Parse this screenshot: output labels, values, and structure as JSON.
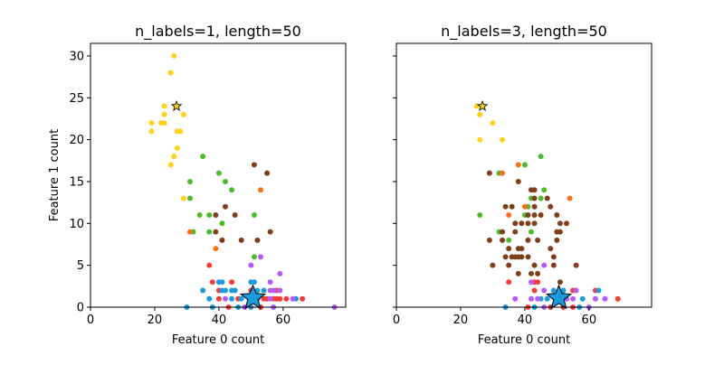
{
  "colors": {
    "yellow": "#ffd11a",
    "green": "#4cbb2e",
    "brown": "#7f3f1a",
    "orange": "#ff6f1a",
    "red": "#f53a3a",
    "blue": "#1a9be0",
    "purple": "#b35cf5"
  },
  "chart_data": [
    {
      "type": "scatter",
      "title": "n_labels=1, length=50",
      "xlabel": "Feature 0 count",
      "ylabel": "Feature 1 count",
      "xlim": [
        0,
        79.5
      ],
      "ylim": [
        0,
        31.5
      ],
      "xticks": [
        0,
        20,
        40,
        60
      ],
      "yticks": [
        0,
        5,
        10,
        15,
        20,
        25,
        30
      ],
      "grid": false,
      "points": [
        [
          26,
          30,
          "yellow"
        ],
        [
          25,
          28,
          "yellow"
        ],
        [
          23,
          24,
          "yellow"
        ],
        [
          23,
          23,
          "yellow"
        ],
        [
          29,
          23,
          "yellow"
        ],
        [
          19,
          22,
          "yellow"
        ],
        [
          22,
          22,
          "yellow"
        ],
        [
          23,
          22,
          "yellow"
        ],
        [
          19,
          21,
          "yellow"
        ],
        [
          27,
          21,
          "yellow"
        ],
        [
          28,
          21,
          "yellow"
        ],
        [
          27,
          19,
          "yellow"
        ],
        [
          26,
          18,
          "yellow"
        ],
        [
          25,
          17,
          "yellow"
        ],
        [
          29,
          13,
          "yellow"
        ],
        [
          35,
          18,
          "green"
        ],
        [
          40,
          16,
          "green"
        ],
        [
          31,
          15,
          "green"
        ],
        [
          42,
          15,
          "green"
        ],
        [
          44,
          14,
          "green"
        ],
        [
          31,
          13,
          "green"
        ],
        [
          34,
          11,
          "green"
        ],
        [
          37,
          11,
          "green"
        ],
        [
          51,
          11,
          "green"
        ],
        [
          41,
          10,
          "green"
        ],
        [
          32,
          9,
          "green"
        ],
        [
          37,
          9,
          "green"
        ],
        [
          51,
          6,
          "green"
        ],
        [
          51,
          17,
          "brown"
        ],
        [
          55,
          16,
          "brown"
        ],
        [
          42,
          12,
          "brown"
        ],
        [
          39,
          11,
          "brown"
        ],
        [
          45,
          11,
          "brown"
        ],
        [
          39,
          9,
          "brown"
        ],
        [
          56,
          9,
          "brown"
        ],
        [
          41,
          8,
          "brown"
        ],
        [
          47,
          8,
          "brown"
        ],
        [
          52,
          8,
          "brown"
        ],
        [
          53,
          14,
          "orange"
        ],
        [
          31,
          9,
          "orange"
        ],
        [
          39,
          7,
          "orange"
        ],
        [
          37,
          5,
          "red"
        ],
        [
          38,
          3,
          "red"
        ],
        [
          44,
          3,
          "red"
        ],
        [
          40,
          2,
          "red"
        ],
        [
          50,
          2,
          "red"
        ],
        [
          58,
          2,
          "red"
        ],
        [
          40,
          1,
          "red"
        ],
        [
          46,
          1,
          "red"
        ],
        [
          54,
          1,
          "red"
        ],
        [
          55,
          1,
          "red"
        ],
        [
          57,
          1,
          "red"
        ],
        [
          58,
          1,
          "red"
        ],
        [
          59,
          1,
          "red"
        ],
        [
          61,
          1,
          "red"
        ],
        [
          66,
          1,
          "red"
        ],
        [
          43,
          0,
          "red"
        ],
        [
          53,
          0,
          "red"
        ],
        [
          40,
          3,
          "blue"
        ],
        [
          41,
          3,
          "blue"
        ],
        [
          50,
          3,
          "blue"
        ],
        [
          51,
          3,
          "blue"
        ],
        [
          35,
          2,
          "blue"
        ],
        [
          41,
          2,
          "blue"
        ],
        [
          42,
          2,
          "blue"
        ],
        [
          44,
          2,
          "blue"
        ],
        [
          45,
          2,
          "blue"
        ],
        [
          52,
          2,
          "blue"
        ],
        [
          54,
          2,
          "blue"
        ],
        [
          37,
          1,
          "blue"
        ],
        [
          44,
          1,
          "blue"
        ],
        [
          47,
          1,
          "blue"
        ],
        [
          52,
          1,
          "blue"
        ],
        [
          64,
          1,
          "blue"
        ],
        [
          30,
          0,
          "blue"
        ],
        [
          38,
          0,
          "blue"
        ],
        [
          46,
          0,
          "blue"
        ],
        [
          50,
          0,
          "blue"
        ],
        [
          53,
          6,
          "purple"
        ],
        [
          50,
          5,
          "purple"
        ],
        [
          59,
          4,
          "purple"
        ],
        [
          56,
          3,
          "purple"
        ],
        [
          56,
          2,
          "purple"
        ],
        [
          57,
          2,
          "purple"
        ],
        [
          59,
          2,
          "purple"
        ],
        [
          42,
          1,
          "purple"
        ],
        [
          56,
          1,
          "purple"
        ],
        [
          63,
          1,
          "purple"
        ],
        [
          48,
          0,
          "purple"
        ],
        [
          57,
          0,
          "purple"
        ],
        [
          76,
          0,
          "purple"
        ]
      ],
      "small_star": [
        26.8,
        24,
        "yellow"
      ],
      "big_star": [
        50.6,
        1.1,
        "blue"
      ]
    },
    {
      "type": "scatter",
      "title": "n_labels=3, length=50",
      "xlabel": "Feature 0 count",
      "ylabel": "",
      "xlim": [
        0,
        79.5
      ],
      "ylim": [
        0,
        31.5
      ],
      "xticks": [
        0,
        20,
        40,
        60
      ],
      "yticks": [
        0,
        5,
        10,
        15,
        20,
        25,
        30
      ],
      "grid": false,
      "points": [
        [
          25,
          24,
          "yellow"
        ],
        [
          26,
          23,
          "yellow"
        ],
        [
          30,
          22,
          "yellow"
        ],
        [
          26,
          20,
          "yellow"
        ],
        [
          33,
          20,
          "yellow"
        ],
        [
          45,
          18,
          "green"
        ],
        [
          40,
          17,
          "green"
        ],
        [
          32,
          16,
          "green"
        ],
        [
          46,
          14,
          "green"
        ],
        [
          42,
          13,
          "green"
        ],
        [
          45,
          13,
          "green"
        ],
        [
          41,
          12,
          "green"
        ],
        [
          26,
          11,
          "green"
        ],
        [
          40,
          11,
          "green"
        ],
        [
          32,
          9,
          "green"
        ],
        [
          42,
          9,
          "green"
        ],
        [
          35,
          8,
          "green"
        ],
        [
          38,
          17,
          "orange"
        ],
        [
          33,
          16,
          "orange"
        ],
        [
          54,
          13,
          "orange"
        ],
        [
          40,
          12,
          "orange"
        ],
        [
          35,
          11,
          "orange"
        ],
        [
          29,
          16,
          "brown"
        ],
        [
          38,
          15,
          "brown"
        ],
        [
          42,
          14,
          "brown"
        ],
        [
          43,
          14,
          "brown"
        ],
        [
          43,
          13,
          "brown"
        ],
        [
          47,
          13,
          "brown"
        ],
        [
          34,
          12,
          "brown"
        ],
        [
          36,
          12,
          "brown"
        ],
        [
          43,
          12,
          "brown"
        ],
        [
          48,
          12,
          "brown"
        ],
        [
          41,
          11,
          "brown"
        ],
        [
          43,
          11,
          "brown"
        ],
        [
          45,
          11,
          "brown"
        ],
        [
          50,
          11,
          "brown"
        ],
        [
          37,
          10,
          "brown"
        ],
        [
          39,
          10,
          "brown"
        ],
        [
          41,
          10,
          "brown"
        ],
        [
          43,
          10,
          "brown"
        ],
        [
          51,
          10,
          "brown"
        ],
        [
          53,
          10,
          "brown"
        ],
        [
          33,
          9,
          "brown"
        ],
        [
          37,
          9,
          "brown"
        ],
        [
          50,
          9,
          "brown"
        ],
        [
          51,
          9,
          "brown"
        ],
        [
          29,
          8,
          "brown"
        ],
        [
          33,
          8,
          "brown"
        ],
        [
          41,
          8,
          "brown"
        ],
        [
          44,
          8,
          "brown"
        ],
        [
          50,
          8,
          "brown"
        ],
        [
          35,
          7,
          "brown"
        ],
        [
          38,
          7,
          "brown"
        ],
        [
          39,
          7,
          "brown"
        ],
        [
          48,
          7,
          "brown"
        ],
        [
          34,
          6,
          "brown"
        ],
        [
          36,
          6,
          "brown"
        ],
        [
          37,
          6,
          "brown"
        ],
        [
          38,
          6,
          "brown"
        ],
        [
          39,
          6,
          "brown"
        ],
        [
          41,
          6,
          "brown"
        ],
        [
          49,
          6,
          "brown"
        ],
        [
          30,
          5,
          "brown"
        ],
        [
          35,
          5,
          "brown"
        ],
        [
          43,
          5,
          "brown"
        ],
        [
          49,
          5,
          "brown"
        ],
        [
          56,
          5,
          "brown"
        ],
        [
          38,
          4,
          "brown"
        ],
        [
          42,
          4,
          "brown"
        ],
        [
          44,
          4,
          "brown"
        ],
        [
          51,
          3,
          "brown"
        ],
        [
          35,
          3,
          "red"
        ],
        [
          43,
          3,
          "red"
        ],
        [
          44,
          3,
          "red"
        ],
        [
          43,
          2,
          "red"
        ],
        [
          55,
          2,
          "red"
        ],
        [
          62,
          2,
          "red"
        ],
        [
          69,
          1,
          "red"
        ],
        [
          41,
          0,
          "red"
        ],
        [
          48,
          0,
          "red"
        ],
        [
          52,
          0,
          "red"
        ],
        [
          55,
          0,
          "red"
        ],
        [
          49,
          2,
          "blue"
        ],
        [
          52,
          2,
          "blue"
        ],
        [
          63,
          2,
          "blue"
        ],
        [
          45,
          1,
          "blue"
        ],
        [
          47,
          1,
          "blue"
        ],
        [
          58,
          1,
          "blue"
        ],
        [
          34,
          0,
          "blue"
        ],
        [
          43,
          0,
          "blue"
        ],
        [
          57,
          0,
          "blue"
        ],
        [
          46,
          5,
          "purple"
        ],
        [
          42,
          3,
          "purple"
        ],
        [
          46,
          2,
          "purple"
        ],
        [
          56,
          2,
          "purple"
        ],
        [
          37,
          1,
          "purple"
        ],
        [
          42,
          1,
          "purple"
        ],
        [
          44,
          1,
          "purple"
        ],
        [
          53,
          1,
          "purple"
        ],
        [
          55,
          1,
          "purple"
        ],
        [
          62,
          1,
          "purple"
        ],
        [
          65,
          1,
          "purple"
        ],
        [
          46,
          0,
          "purple"
        ],
        [
          60,
          0,
          "purple"
        ]
      ],
      "small_star": [
        26.8,
        24,
        "yellow"
      ],
      "big_star": [
        50.6,
        1.1,
        "blue"
      ]
    }
  ]
}
